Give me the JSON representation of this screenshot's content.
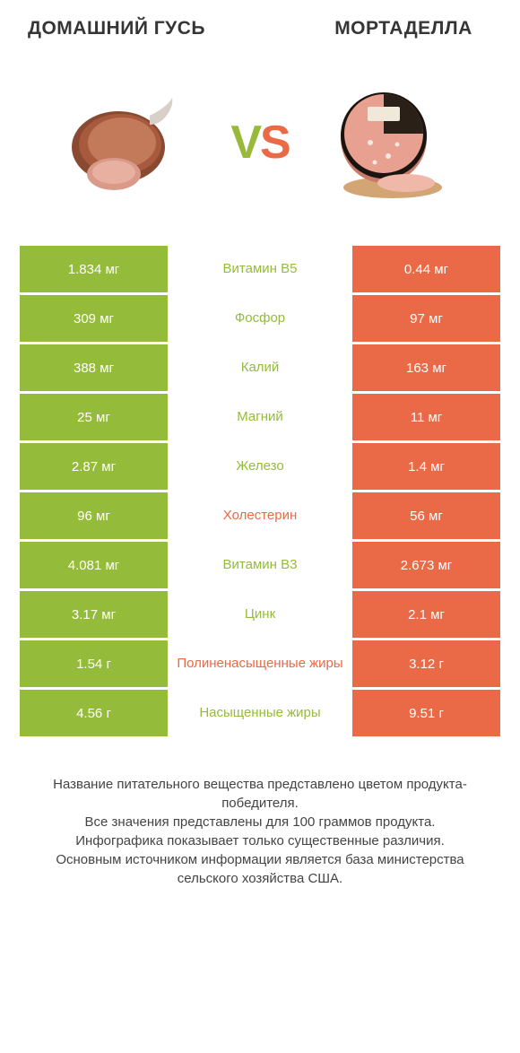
{
  "colors": {
    "green": "#95bb3a",
    "orange": "#ea6a47",
    "white": "#ffffff",
    "text": "#333333"
  },
  "header": {
    "left_title": "Домашний гусь",
    "right_title": "Мортаделла",
    "vs_v": "V",
    "vs_s": "S"
  },
  "rows": [
    {
      "left": "1.834 мг",
      "mid": "Витамин B5",
      "right": "0.44 мг",
      "winner": "left"
    },
    {
      "left": "309 мг",
      "mid": "Фосфор",
      "right": "97 мг",
      "winner": "left"
    },
    {
      "left": "388 мг",
      "mid": "Калий",
      "right": "163 мг",
      "winner": "left"
    },
    {
      "left": "25 мг",
      "mid": "Магний",
      "right": "11 мг",
      "winner": "left"
    },
    {
      "left": "2.87 мг",
      "mid": "Железо",
      "right": "1.4 мг",
      "winner": "left"
    },
    {
      "left": "96 мг",
      "mid": "Холестерин",
      "right": "56 мг",
      "winner": "right"
    },
    {
      "left": "4.081 мг",
      "mid": "Витамин B3",
      "right": "2.673 мг",
      "winner": "left"
    },
    {
      "left": "3.17 мг",
      "mid": "Цинк",
      "right": "2.1 мг",
      "winner": "left"
    },
    {
      "left": "1.54 г",
      "mid": "Полиненасыщенные жиры",
      "right": "3.12 г",
      "winner": "right"
    },
    {
      "left": "4.56 г",
      "mid": "Насыщенные жиры",
      "right": "9.51 г",
      "winner": "left"
    }
  ],
  "footer": {
    "line1": "Название питательного вещества представлено цветом продукта-победителя.",
    "line2": "Все значения представлены для 100 граммов продукта.",
    "line3": "Инфографика показывает только существенные различия.",
    "line4": "Основным источником информации является база министерства сельского хозяйства США."
  }
}
